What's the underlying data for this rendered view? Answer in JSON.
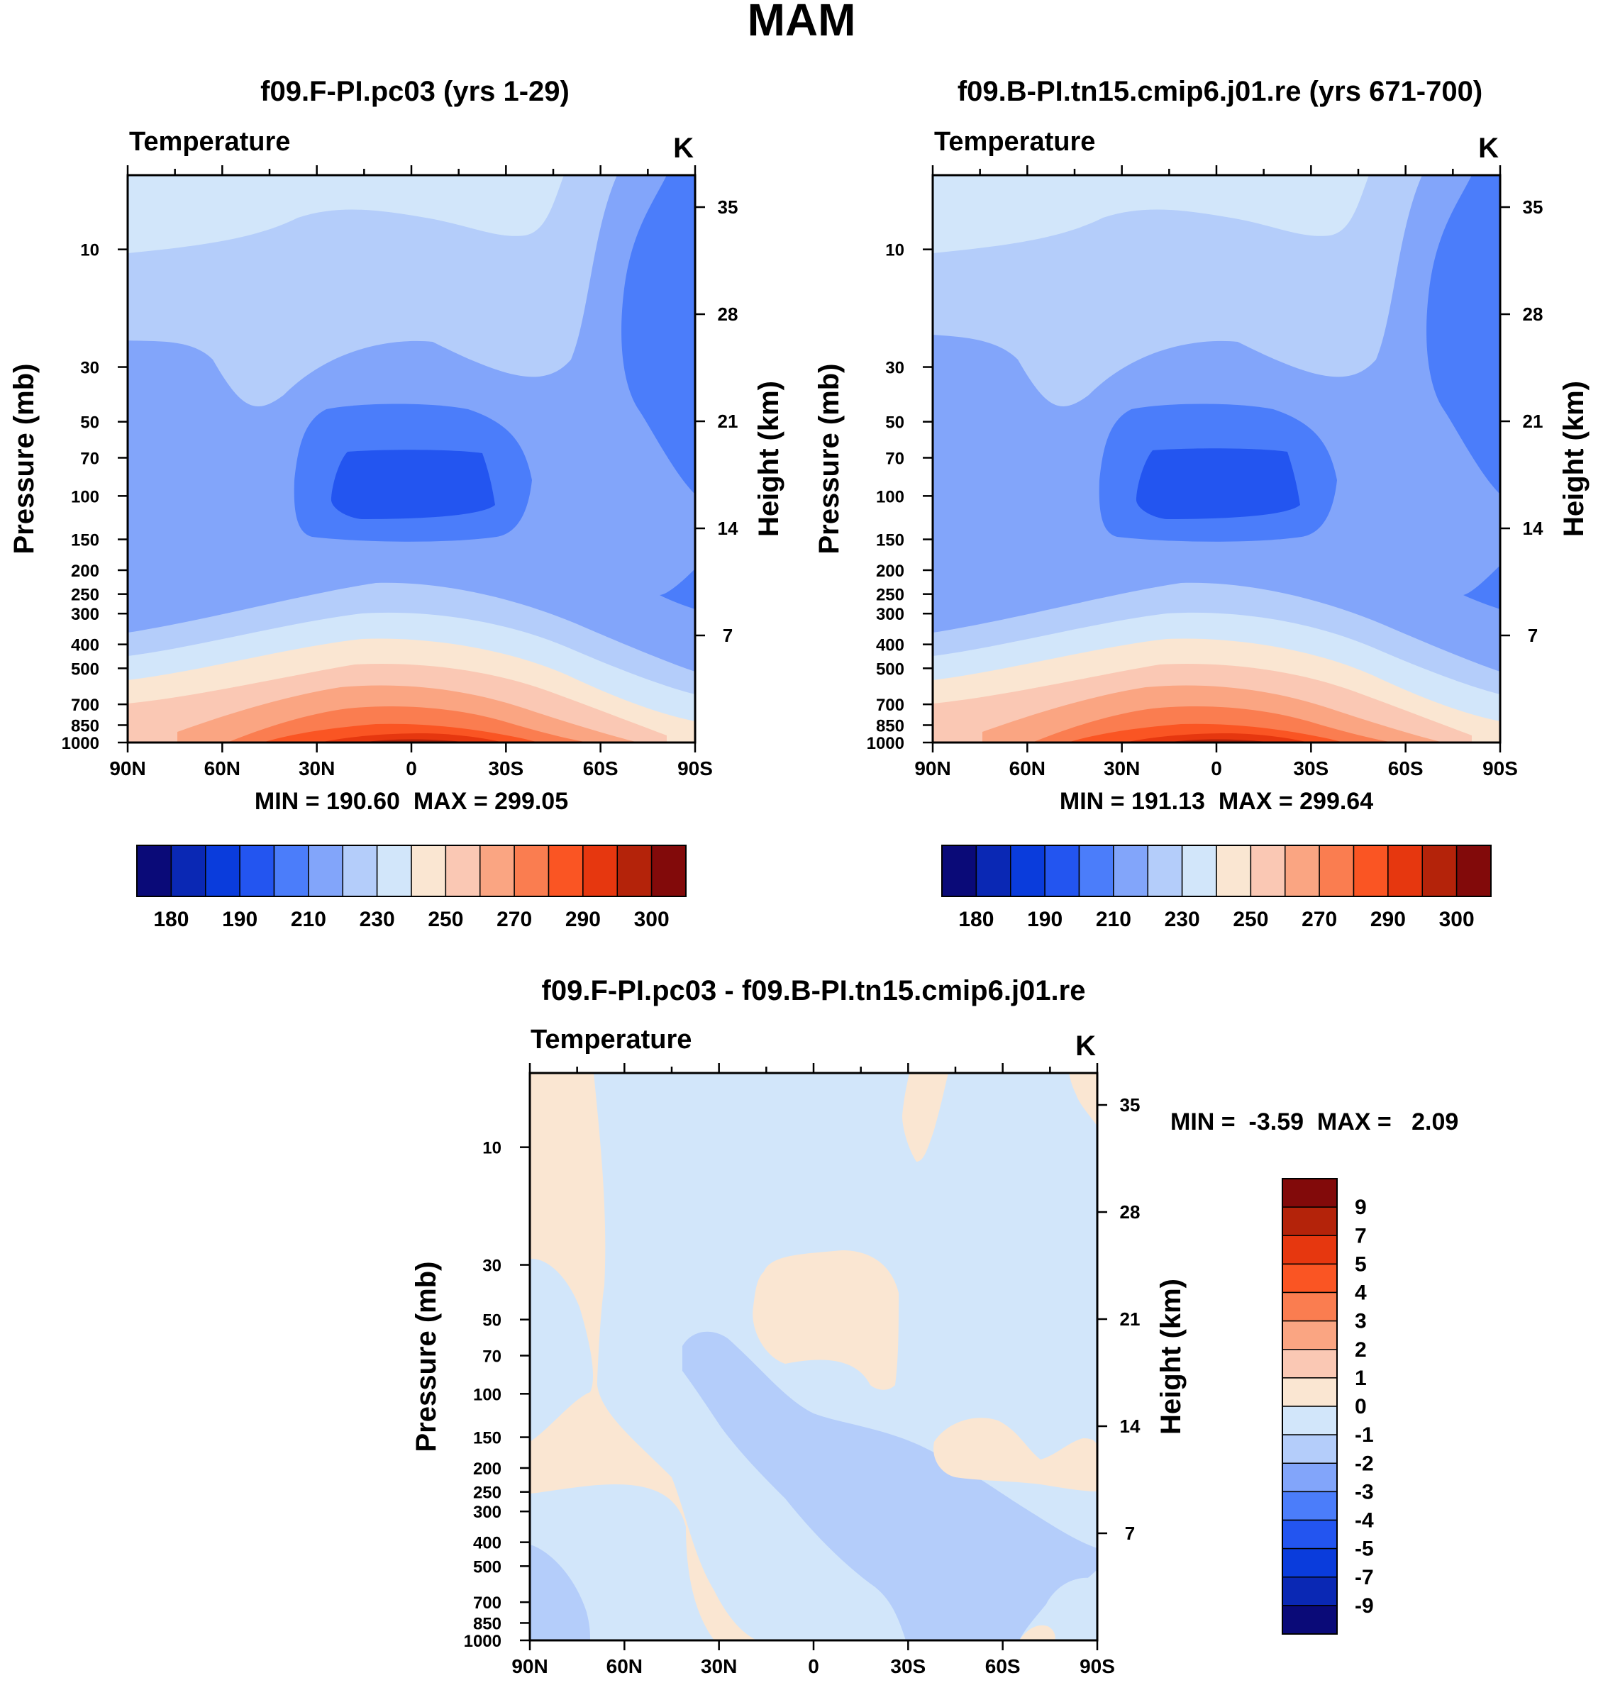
{
  "figure_title": "MAM",
  "colors": {
    "temperature_scale": [
      "#0a0a78",
      "#0a28b4",
      "#0a3cdc",
      "#2355f0",
      "#4b7dfa",
      "#82a5fa",
      "#b4cdfa",
      "#d2e6fa",
      "#fae6d2",
      "#fac8b4",
      "#faa582",
      "#fa7d50",
      "#fa5523",
      "#e6370f",
      "#b4230a",
      "#820a0a"
    ],
    "difference_scale": [
      "#0a0a78",
      "#0a28b4",
      "#0a3cdc",
      "#2355f0",
      "#4b7dfa",
      "#82a5fa",
      "#b4cdfa",
      "#d2e6fa",
      "#fae6d2",
      "#fac8b4",
      "#faa582",
      "#fa7d50",
      "#fa5523",
      "#e6370f",
      "#b4230a",
      "#820a0a"
    ]
  },
  "chart_data": [
    {
      "type": "heatmap",
      "title": "f09.F-PI.pc03 (yrs 1-29)",
      "subtitle_left": "Temperature",
      "subtitle_right": "K",
      "ylabel": "Pressure (mb)",
      "ylabel_right": "Height (km)",
      "x_ticks": [
        "90N",
        "60N",
        "30N",
        "0",
        "30S",
        "60S",
        "90S"
      ],
      "y_ticks": [
        "10",
        "30",
        "50",
        "70",
        "100",
        "150",
        "200",
        "250",
        "300",
        "400",
        "500",
        "700",
        "850",
        "1000"
      ],
      "y2_ticks": [
        "35",
        "28",
        "21",
        "14",
        "7"
      ],
      "ylim": [
        1000,
        5
      ],
      "stats_text": "MIN = 190.60  MAX = 299.05",
      "min": 190.6,
      "max": 299.05,
      "colorbar_labels": [
        "180",
        "190",
        "210",
        "230",
        "250",
        "270",
        "290",
        "300"
      ]
    },
    {
      "type": "heatmap",
      "title": "f09.B-PI.tn15.cmip6.j01.re (yrs 671-700)",
      "subtitle_left": "Temperature",
      "subtitle_right": "K",
      "ylabel": "Pressure (mb)",
      "ylabel_right": "Height (km)",
      "x_ticks": [
        "90N",
        "60N",
        "30N",
        "0",
        "30S",
        "60S",
        "90S"
      ],
      "y_ticks": [
        "10",
        "30",
        "50",
        "70",
        "100",
        "150",
        "200",
        "250",
        "300",
        "400",
        "500",
        "700",
        "850",
        "1000"
      ],
      "y2_ticks": [
        "35",
        "28",
        "21",
        "14",
        "7"
      ],
      "ylim": [
        1000,
        5
      ],
      "stats_text": "MIN = 191.13  MAX = 299.64",
      "min": 191.13,
      "max": 299.64,
      "colorbar_labels": [
        "180",
        "190",
        "210",
        "230",
        "250",
        "270",
        "290",
        "300"
      ]
    },
    {
      "type": "heatmap",
      "title": "f09.F-PI.pc03 - f09.B-PI.tn15.cmip6.j01.re",
      "subtitle_left": "Temperature",
      "subtitle_right": "K",
      "ylabel": "Pressure (mb)",
      "ylabel_right": "Height (km)",
      "x_ticks": [
        "90N",
        "60N",
        "30N",
        "0",
        "30S",
        "60S",
        "90S"
      ],
      "y_ticks": [
        "10",
        "30",
        "50",
        "70",
        "100",
        "150",
        "200",
        "250",
        "300",
        "400",
        "500",
        "700",
        "850",
        "1000"
      ],
      "y2_ticks": [
        "35",
        "28",
        "21",
        "14",
        "7"
      ],
      "ylim": [
        1000,
        5
      ],
      "stats_text": "MIN =  -3.59  MAX =   2.09",
      "min": -3.59,
      "max": 2.09,
      "colorbar_labels": [
        "9",
        "7",
        "5",
        "4",
        "3",
        "2",
        "1",
        "0",
        "-1",
        "-2",
        "-3",
        "-4",
        "-5",
        "-7",
        "-9"
      ]
    }
  ]
}
